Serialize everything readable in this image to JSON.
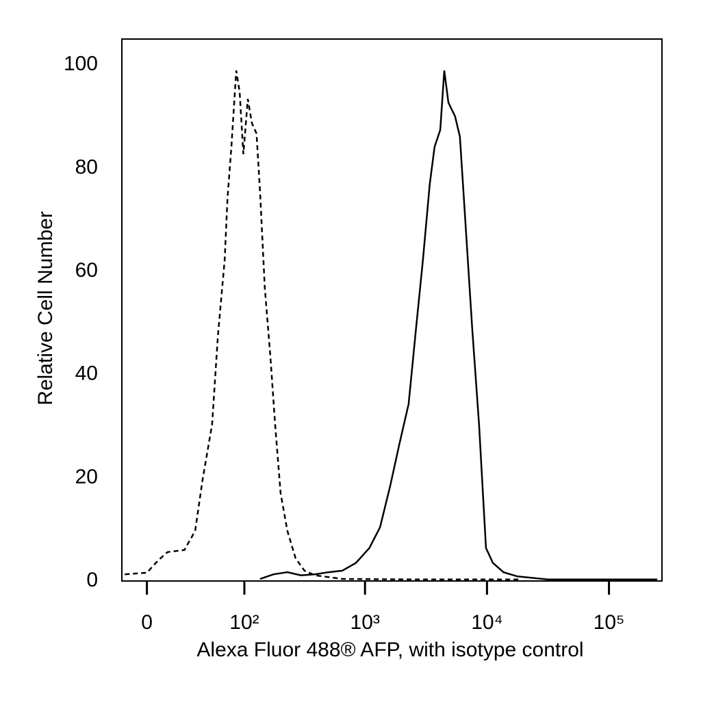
{
  "chart_data": {
    "type": "line",
    "xlabel": "Alexa Fluor 488® AFP, with isotype control",
    "ylabel": "Relative Cell Number",
    "xscale": "biexponential",
    "xlim": [
      -16,
      272000
    ],
    "xticks": [
      0,
      {
        "value": 100,
        "label": "10²"
      },
      {
        "value": 1000,
        "label": "10³"
      },
      {
        "value": 10000,
        "label": "10⁴"
      },
      {
        "value": 100000,
        "label": "10⁵"
      }
    ],
    "ylim": [
      0,
      105
    ],
    "yticks": [
      0,
      20,
      40,
      60,
      80,
      100
    ],
    "grid": false,
    "series": [
      {
        "color": "#000000",
        "line_style": "dashed",
        "x": [
          -14,
          0,
          7,
          13,
          25,
          34,
          41,
          51,
          58,
          67,
          71,
          77,
          85,
          91,
          98,
          107,
          116,
          127,
          136,
          149,
          166,
          182,
          202,
          230,
          269,
          318,
          388,
          652,
          2370,
          18800
        ],
        "values": [
          1.3,
          1.6,
          4.0,
          5.6,
          6.0,
          9.7,
          19.7,
          30.3,
          47.5,
          62.2,
          74.1,
          84.1,
          98.9,
          94.7,
          82.7,
          93.4,
          88.7,
          86.7,
          75.4,
          56.8,
          43.6,
          30.3,
          17.0,
          9.7,
          4.4,
          2.0,
          1.1,
          0.4,
          0.3,
          0.3
        ]
      },
      {
        "color": "#000000",
        "line_style": "solid",
        "x": [
          136,
          177,
          230,
          298,
          388,
          502,
          652,
          842,
          1086,
          1327,
          1604,
          1904,
          2279,
          2621,
          2983,
          3390,
          3716,
          4140,
          4466,
          4825,
          5477,
          6000,
          6683,
          7563,
          8606,
          9813,
          11180,
          13660,
          17670,
          31590,
          248700
        ],
        "values": [
          0.4,
          1.3,
          1.7,
          1.1,
          1.3,
          1.7,
          2.0,
          3.5,
          6.4,
          10.4,
          18.3,
          26.3,
          34.3,
          48.9,
          62.2,
          76.8,
          84.1,
          87.4,
          98.9,
          92.7,
          90.0,
          86.1,
          68.8,
          48.9,
          30.3,
          6.4,
          3.5,
          1.7,
          0.9,
          0.3,
          0.3
        ]
      }
    ]
  }
}
